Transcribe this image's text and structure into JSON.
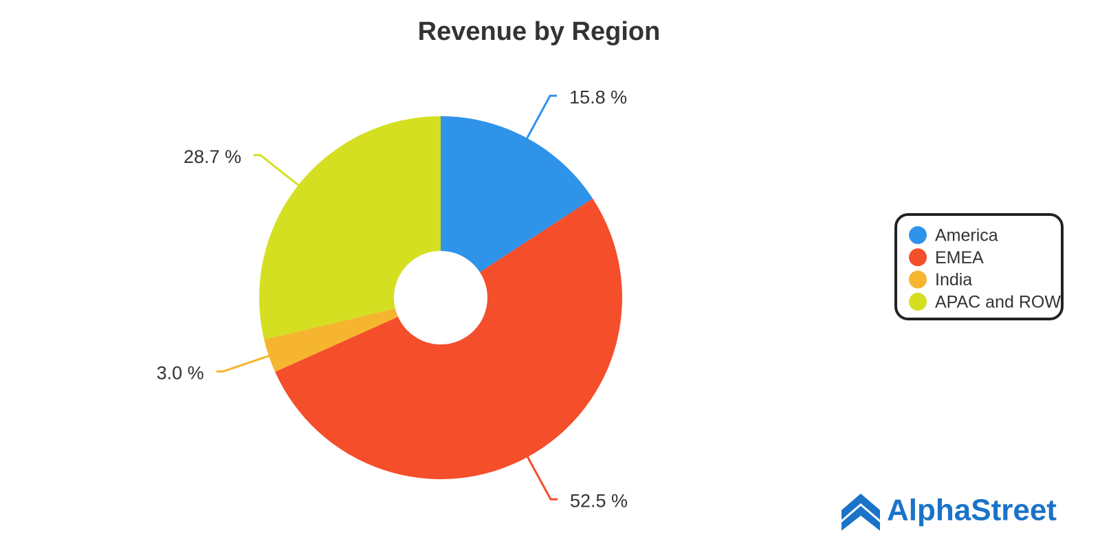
{
  "chart_data": {
    "type": "pie",
    "title": "Revenue by Region",
    "categories": [
      "America",
      "EMEA",
      "India",
      "APAC and ROW"
    ],
    "values": [
      15.8,
      52.5,
      3.0,
      28.7
    ],
    "value_labels": [
      "15.8 %",
      "52.5 %",
      "3.0 %",
      "28.7 %"
    ],
    "colors": [
      "#2f93ea",
      "#f44e2b",
      "#f5b52e",
      "#d4df22"
    ],
    "donut": true,
    "legend": "right"
  },
  "logo": {
    "text": "AlphaStreet"
  }
}
